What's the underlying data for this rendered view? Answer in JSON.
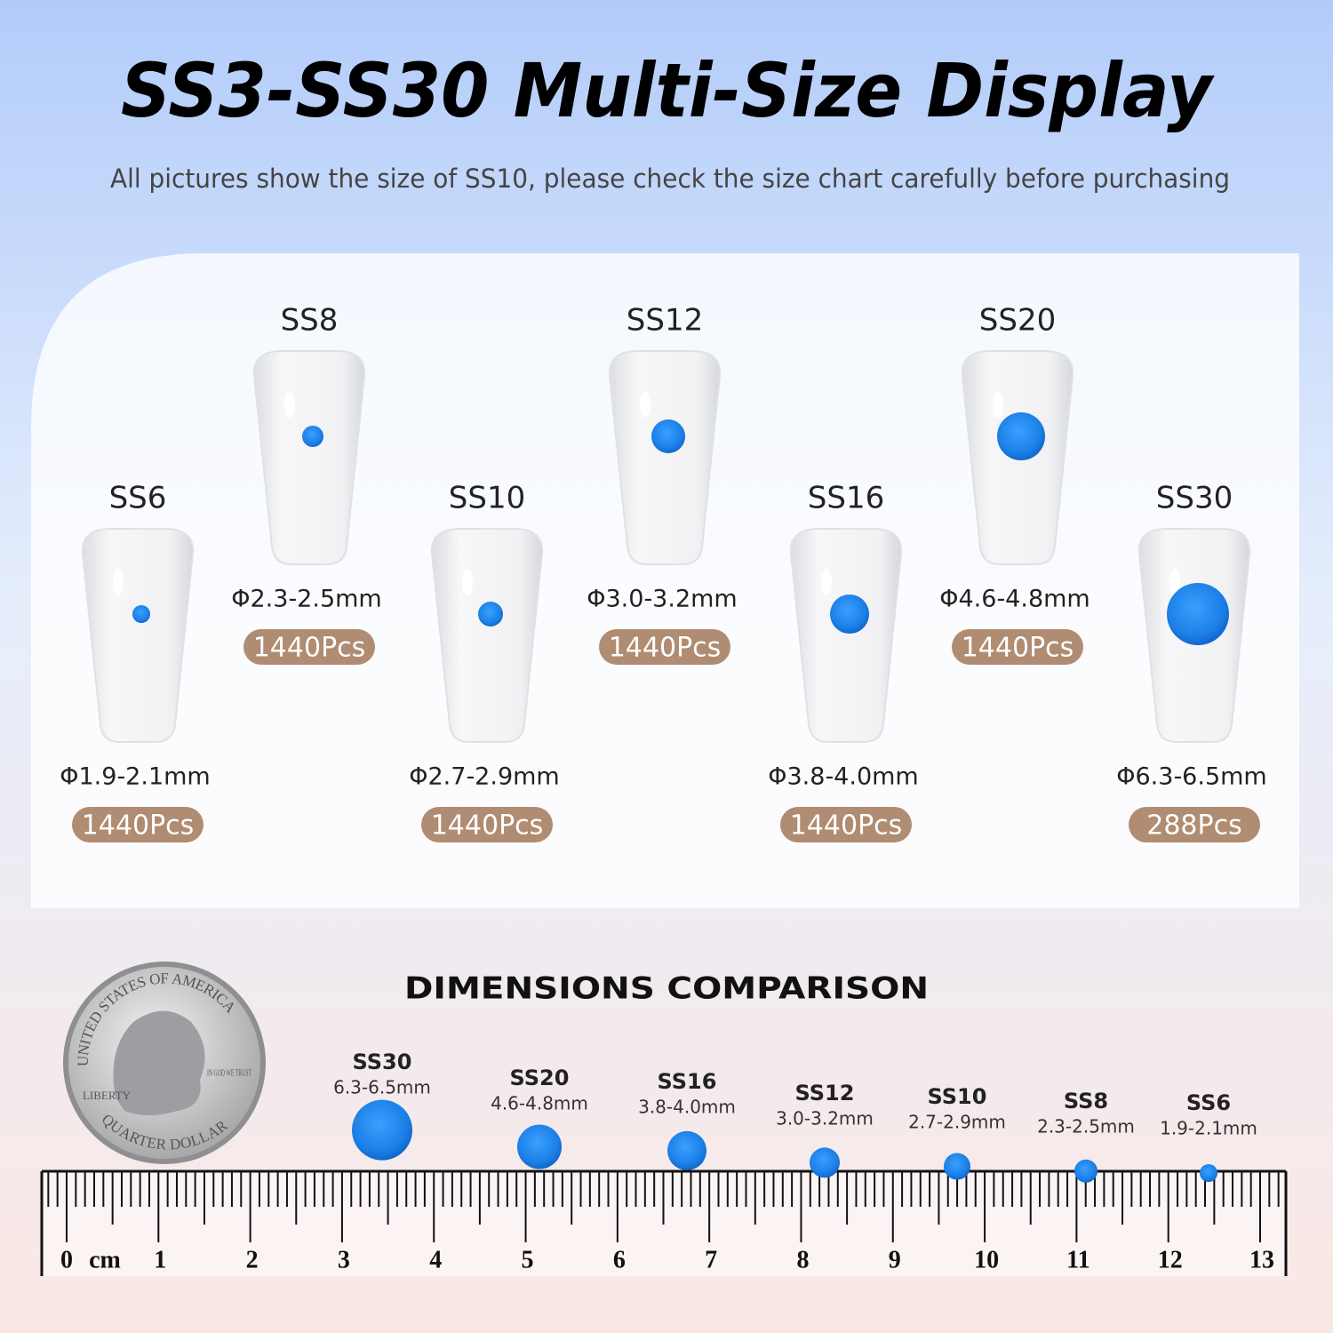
{
  "header": {
    "title": "SS3-SS30 Multi-Size Display",
    "subtitle": "All pictures show the size of SS10, please check the size chart carefully  before purchasing"
  },
  "display": {
    "items": [
      {
        "size": "SS6",
        "diameter": "Φ1.9-2.1mm",
        "quantity": "1440Pcs"
      },
      {
        "size": "SS8",
        "diameter": "Φ2.3-2.5mm",
        "quantity": "1440Pcs"
      },
      {
        "size": "SS10",
        "diameter": "Φ2.7-2.9mm",
        "quantity": "1440Pcs"
      },
      {
        "size": "SS12",
        "diameter": "Φ3.0-3.2mm",
        "quantity": "1440Pcs"
      },
      {
        "size": "SS16",
        "diameter": "Φ3.8-4.0mm",
        "quantity": "1440Pcs"
      },
      {
        "size": "SS20",
        "diameter": "Φ4.6-4.8mm",
        "quantity": "1440Pcs"
      },
      {
        "size": "SS30",
        "diameter": "Φ6.3-6.5mm",
        "quantity": "288Pcs"
      }
    ]
  },
  "comparison": {
    "title": "DIMENSIONS COMPARISON",
    "items": [
      {
        "size": "SS30",
        "diameter": "6.3-6.5mm"
      },
      {
        "size": "SS20",
        "diameter": "4.6-4.8mm"
      },
      {
        "size": "SS16",
        "diameter": "3.8-4.0mm"
      },
      {
        "size": "SS12",
        "diameter": "3.0-3.2mm"
      },
      {
        "size": "SS10",
        "diameter": "2.7-2.9mm"
      },
      {
        "size": "SS8",
        "diameter": "2.3-2.5mm"
      },
      {
        "size": "SS6",
        "diameter": "1.9-2.1mm"
      }
    ]
  },
  "coin": {
    "top": "UNITED STATES OF AMERICA",
    "left": "LIBERTY",
    "motto": "IN GOD WE TRUST",
    "bottom": "QUARTER DOLLAR"
  },
  "ruler": {
    "unit": "cm",
    "labels": [
      "0",
      "1",
      "2",
      "3",
      "4",
      "5",
      "6",
      "7",
      "8",
      "9",
      "10",
      "11",
      "12",
      "13"
    ]
  }
}
